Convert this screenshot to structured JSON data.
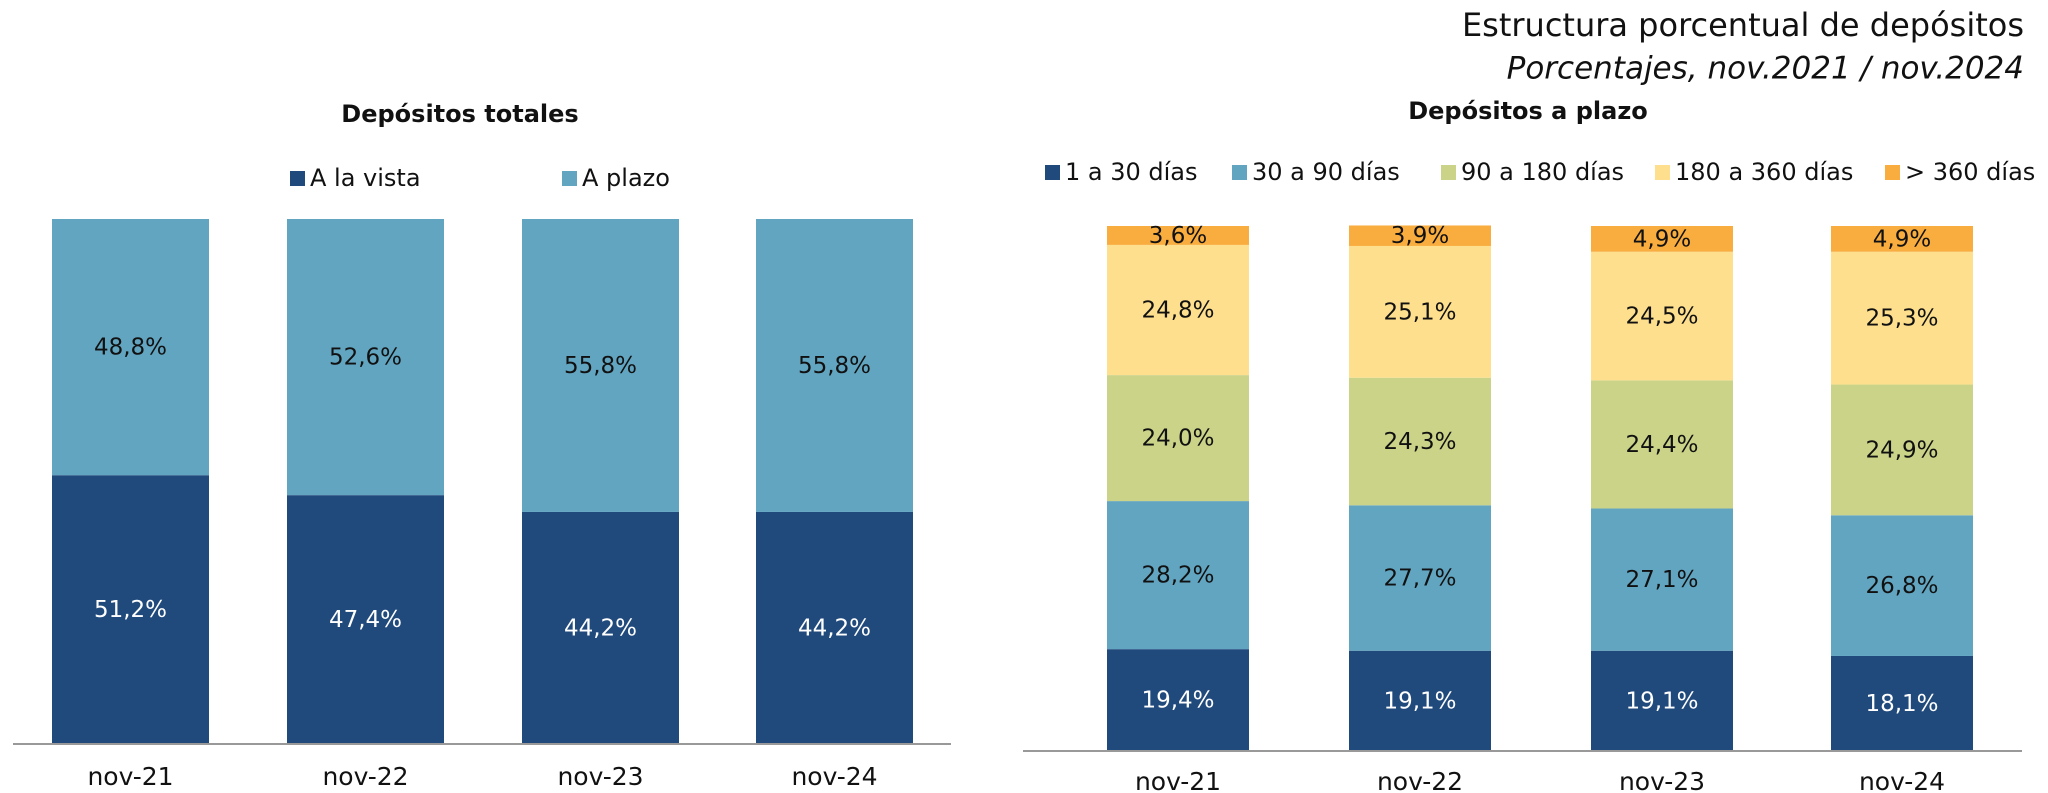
{
  "title": "Estructura  porcentual de depósitos",
  "subtitle": "Porcentajes, nov.2021 /  nov.2024",
  "chart_data": [
    {
      "type": "bar",
      "stacked": true,
      "title": "Depósitos totales",
      "categories": [
        "nov-21",
        "nov-22",
        "nov-23",
        "nov-24"
      ],
      "ylim": [
        0,
        100
      ],
      "series": [
        {
          "name": "A la vista",
          "color": "#214a7c",
          "values": [
            51.2,
            47.4,
            44.2,
            44.2
          ],
          "value_labels": [
            "51,2%",
            "47,4%",
            "44,2%",
            "44,2%"
          ]
        },
        {
          "name": "A plazo",
          "color": "#62a5c1",
          "values": [
            48.8,
            52.6,
            55.8,
            55.8
          ],
          "value_labels": [
            "48,8%",
            "52,6%",
            "55,8%",
            "55,8%"
          ]
        }
      ]
    },
    {
      "type": "bar",
      "stacked": true,
      "title": "Depósitos a plazo",
      "categories": [
        "nov-21",
        "nov-22",
        "nov-23",
        "nov-24"
      ],
      "ylim": [
        0,
        100
      ],
      "series": [
        {
          "name": "1  a 30 días",
          "color": "#214a7c",
          "values": [
            19.4,
            19.1,
            19.1,
            18.1
          ],
          "value_labels": [
            "19,4%",
            "19,1%",
            "19,1%",
            "18,1%"
          ]
        },
        {
          "name": "30 a 90 días",
          "color": "#62a5c1",
          "values": [
            28.2,
            27.7,
            27.1,
            26.8
          ],
          "value_labels": [
            "28,2%",
            "27,7%",
            "27,1%",
            "26,8%"
          ]
        },
        {
          "name": "90 a 180 días",
          "color": "#cbd388",
          "values": [
            24.0,
            24.3,
            24.4,
            24.9
          ],
          "value_labels": [
            "24,0%",
            "24,3%",
            "24,4%",
            "24,9%"
          ]
        },
        {
          "name": "180 a 360 días",
          "color": "#fddf8e",
          "values": [
            24.8,
            25.1,
            24.5,
            25.3
          ],
          "value_labels": [
            "24,8%",
            "25,1%",
            "24,5%",
            "25,3%"
          ]
        },
        {
          "name": "> 360 días",
          "color": "#f9ad3e",
          "values": [
            3.6,
            3.9,
            4.9,
            4.9
          ],
          "value_labels": [
            "3,6%",
            "3,9%",
            "4,9%",
            "4,9%"
          ]
        }
      ]
    }
  ]
}
